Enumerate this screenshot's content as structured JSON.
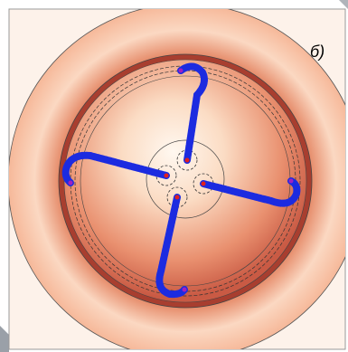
{
  "label": "б)"
}
